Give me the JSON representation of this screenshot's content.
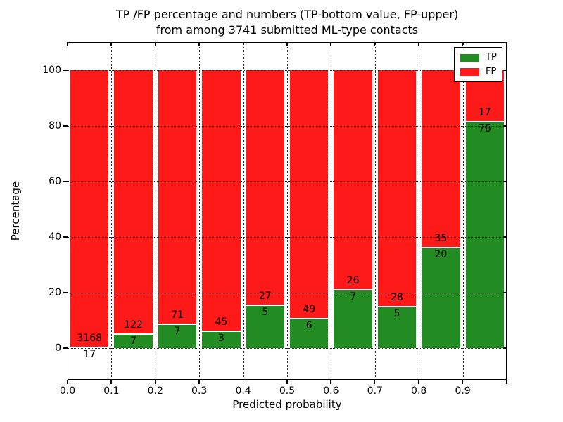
{
  "chart_data": {
    "type": "bar",
    "variant": "stacked-percentage",
    "title_line1": "TP /FP percentage and numbers (TP-bottom value, FP-upper)",
    "title_line2": "from among 3741 submitted ML-type contacts",
    "total_submitted_contacts": 3741,
    "xlabel": "Predicted probability",
    "ylabel": "Percentage",
    "x_tick_labels": [
      "0.0",
      "0.1",
      "0.2",
      "0.3",
      "0.4",
      "0.5",
      "0.6",
      "0.7",
      "0.8",
      "0.9"
    ],
    "y_ticks": [
      0,
      20,
      40,
      60,
      80,
      100
    ],
    "xlim": [
      0.0,
      1.0
    ],
    "ylim": [
      -11,
      111
    ],
    "grid": "dotted-black-both-axes",
    "note": "Each bar is a 0.1-wide predicted-probability bin; green TP% on bottom, red FP% on top, stacked to 100%. Labels show raw counts: FP count above the TP/FP boundary, TP count below it.",
    "legend": {
      "position": "upper-right",
      "entries": [
        {
          "label": "TP",
          "color": "#228b22"
        },
        {
          "label": "FP",
          "color": "#ff1a1a"
        }
      ]
    },
    "colors": {
      "tp": "#228b22",
      "fp": "#ff1a1a",
      "bar_edge": "#ffffff",
      "grid": "#000000",
      "background": "#ffffff"
    },
    "bins": [
      {
        "x_start": 0.0,
        "x_end": 0.1,
        "tp": 17,
        "fp": 3168
      },
      {
        "x_start": 0.1,
        "x_end": 0.2,
        "tp": 7,
        "fp": 122
      },
      {
        "x_start": 0.2,
        "x_end": 0.3,
        "tp": 7,
        "fp": 71
      },
      {
        "x_start": 0.3,
        "x_end": 0.4,
        "tp": 3,
        "fp": 45
      },
      {
        "x_start": 0.4,
        "x_end": 0.5,
        "tp": 5,
        "fp": 27
      },
      {
        "x_start": 0.5,
        "x_end": 0.6,
        "tp": 6,
        "fp": 49
      },
      {
        "x_start": 0.6,
        "x_end": 0.7,
        "tp": 7,
        "fp": 26
      },
      {
        "x_start": 0.7,
        "x_end": 0.8,
        "tp": 5,
        "fp": 28
      },
      {
        "x_start": 0.8,
        "x_end": 0.9,
        "tp": 20,
        "fp": 35
      },
      {
        "x_start": 0.9,
        "x_end": 1.0,
        "tp": 76,
        "fp": 17
      }
    ]
  }
}
